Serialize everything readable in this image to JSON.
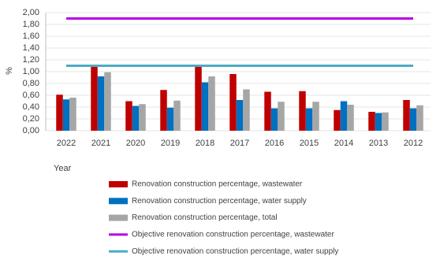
{
  "chart_data": {
    "type": "bar",
    "y_label": "%",
    "x_label": "Year",
    "categories": [
      "2022",
      "2021",
      "2020",
      "2019",
      "2018",
      "2017",
      "2016",
      "2015",
      "2014",
      "2013",
      "2012"
    ],
    "series": [
      {
        "name": "Renovation construction percentage, wastewater",
        "color": "#c00000",
        "type": "bar",
        "values": [
          0.61,
          1.08,
          0.5,
          0.69,
          1.08,
          0.96,
          0.66,
          0.67,
          0.35,
          0.32,
          0.52
        ]
      },
      {
        "name": "Renovation construction percentage, water supply",
        "color": "#0070c0",
        "type": "bar",
        "values": [
          0.53,
          0.92,
          0.42,
          0.39,
          0.82,
          0.52,
          0.38,
          0.38,
          0.5,
          0.3,
          0.38
        ]
      },
      {
        "name": "Renovation construction percentage, total",
        "color": "#a6a6a6",
        "type": "bar",
        "values": [
          0.56,
          0.99,
          0.45,
          0.51,
          0.92,
          0.7,
          0.49,
          0.49,
          0.44,
          0.31,
          0.43
        ]
      },
      {
        "name": "Objective renovation construction percentage, wastewater",
        "color": "#b800e6",
        "type": "line",
        "values": [
          1.9,
          1.9,
          1.9,
          1.9,
          1.9,
          1.9,
          1.9,
          1.9,
          1.9,
          1.9,
          1.9
        ]
      },
      {
        "name": "Objective renovation construction percentage, water supply",
        "color": "#4bacc6",
        "type": "line",
        "values": [
          1.1,
          1.1,
          1.1,
          1.1,
          1.1,
          1.1,
          1.1,
          1.1,
          1.1,
          1.1,
          1.1
        ]
      }
    ],
    "ylim": [
      0,
      2
    ],
    "yticks": [
      {
        "value": 0,
        "label": "0,00"
      },
      {
        "value": 0.2,
        "label": "0,20"
      },
      {
        "value": 0.4,
        "label": "0,40"
      },
      {
        "value": 0.6,
        "label": "0,60"
      },
      {
        "value": 0.8,
        "label": "0,80"
      },
      {
        "value": 1,
        "label": "1,00"
      },
      {
        "value": 1.2,
        "label": "1,20"
      },
      {
        "value": 1.4,
        "label": "1,40"
      },
      {
        "value": 1.6,
        "label": "1,60"
      },
      {
        "value": 1.8,
        "label": "1,80"
      },
      {
        "value": 2,
        "label": "2,00"
      }
    ],
    "grid": true
  }
}
